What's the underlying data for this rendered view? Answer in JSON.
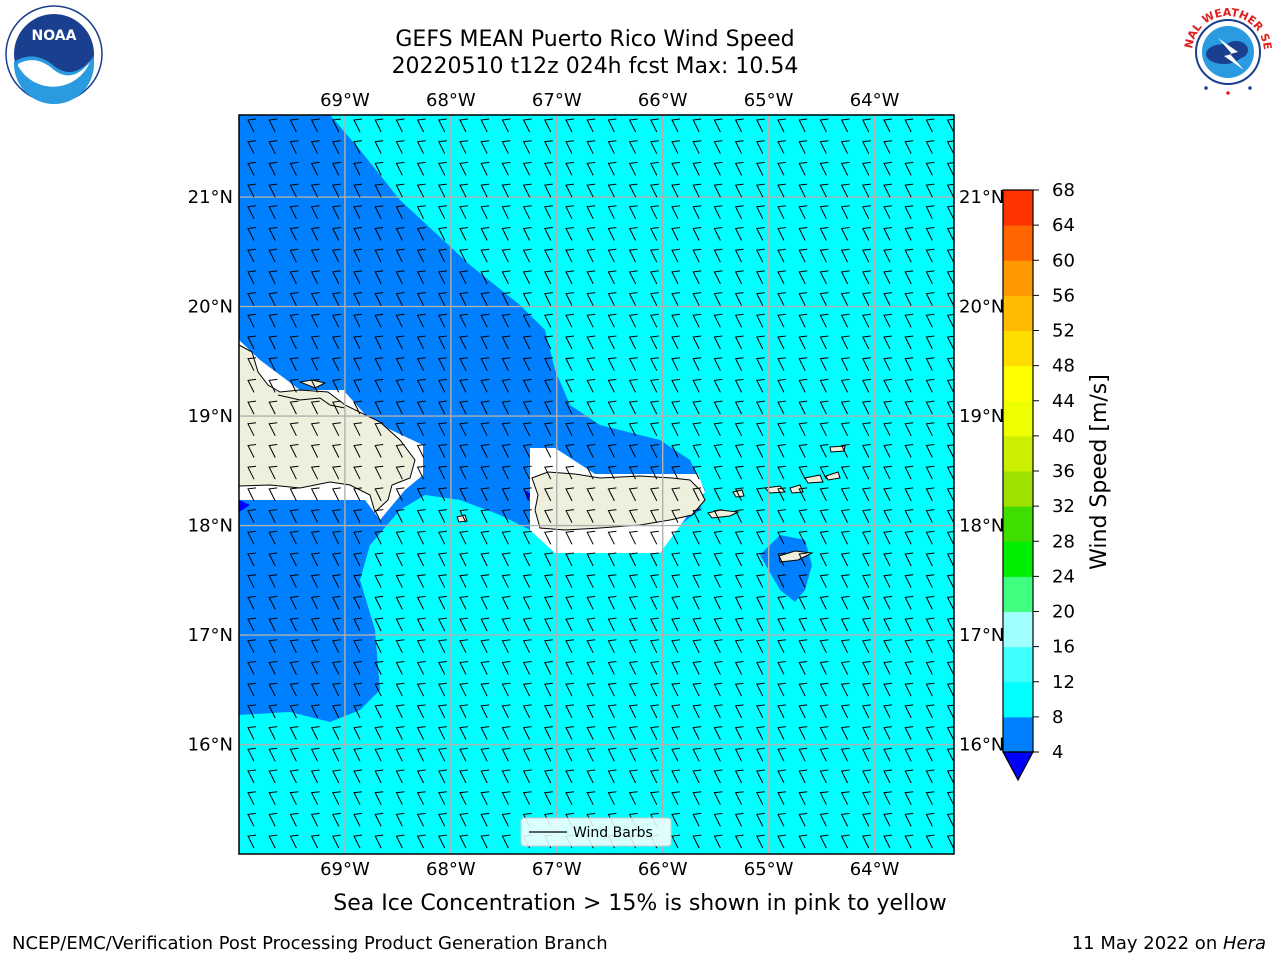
{
  "header": {
    "title_line1": "GEFS MEAN Puerto Rico Wind Speed",
    "title_line2": "20220510 t12z 024h fcst   Max: 10.54"
  },
  "logos": {
    "left": {
      "icon": "noaa-logo",
      "text": "NOAA"
    },
    "right": {
      "icon": "national-weather-service-logo",
      "text": "NATIONAL WEATHER SERVICE"
    }
  },
  "map": {
    "lon_labels": [
      "69°W",
      "68°W",
      "67°W",
      "66°W",
      "65°W",
      "64°W"
    ],
    "lat_labels": [
      "21°N",
      "20°N",
      "19°N",
      "18°N",
      "17°N",
      "16°N"
    ],
    "lon_range": [
      -70.0,
      -63.25
    ],
    "lat_range": [
      15.0,
      21.75
    ],
    "legend_label": "Wind Barbs",
    "colors": {
      "land": "#efefdd",
      "speed_4_8": "#0080ff",
      "speed_8_12": "#00ffff",
      "below_4": "#0000ff",
      "grid": "#b0b0b0"
    }
  },
  "colorbar": {
    "label": "Wind Speed [m/s]",
    "ticks": [
      "4",
      "8",
      "12",
      "16",
      "20",
      "24",
      "28",
      "32",
      "36",
      "40",
      "44",
      "48",
      "52",
      "56",
      "60",
      "64",
      "68"
    ],
    "colors": [
      "#0080ff",
      "#00ffff",
      "#40ffff",
      "#a0ffff",
      "#40ff80",
      "#00ee00",
      "#40dd00",
      "#a0e000",
      "#ccee00",
      "#eeff00",
      "#ffff00",
      "#ffdd00",
      "#ffbb00",
      "#ff9900",
      "#ff6600",
      "#ff3300"
    ],
    "under_color": "#0000ff"
  },
  "caption": "Sea Ice Concentration > 15% is shown in pink to yellow",
  "footer": {
    "left": "NCEP/EMC/Verification Post Processing Product Generation Branch",
    "right_prefix": "11 May 2022 on ",
    "right_machine": "Hera"
  }
}
